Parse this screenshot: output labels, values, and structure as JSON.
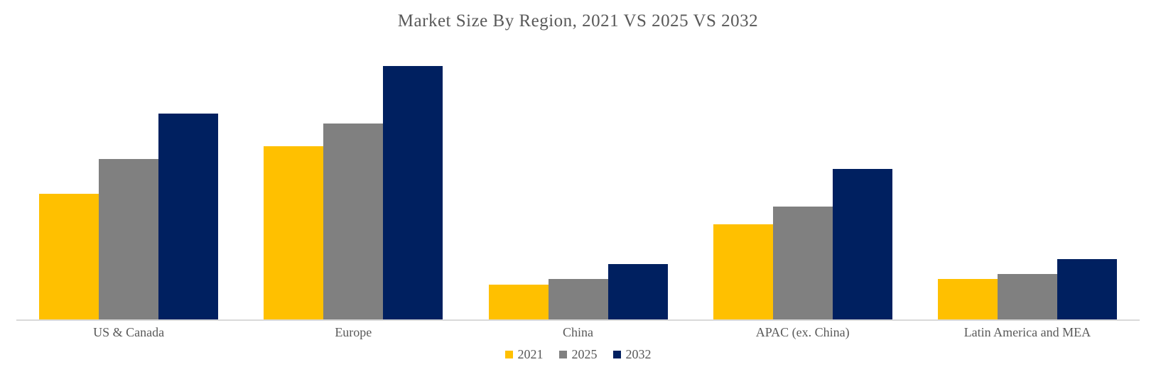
{
  "colors": {
    "series_2021": "#FFC000",
    "series_2025": "#808080",
    "series_2032": "#002060",
    "axis_line": "#D9D9D9",
    "text": "#595959",
    "background": "#FFFFFF"
  },
  "chart_data": {
    "type": "bar",
    "title": "Market Size By Region, 2021 VS 2025 VS 2032",
    "categories": [
      "US & Canada",
      "Europe",
      "China",
      "APAC (ex. China)",
      "Latin America and MEA"
    ],
    "series": [
      {
        "name": "2021",
        "color": "#FFC000",
        "values": [
          50,
          69,
          14,
          38,
          16
        ]
      },
      {
        "name": "2025",
        "color": "#808080",
        "values": [
          64,
          78,
          16,
          45,
          18
        ]
      },
      {
        "name": "2032",
        "color": "#002060",
        "values": [
          82,
          101,
          22,
          60,
          24
        ]
      }
    ],
    "xlabel": "",
    "ylabel": "",
    "ylim": [
      0,
      110
    ],
    "y_axis_visible": false,
    "gridlines": false,
    "legend_position": "bottom",
    "legend": [
      {
        "label": "2021",
        "color": "#FFC000"
      },
      {
        "label": "2025",
        "color": "#808080"
      },
      {
        "label": "2032",
        "color": "#002060"
      }
    ]
  }
}
